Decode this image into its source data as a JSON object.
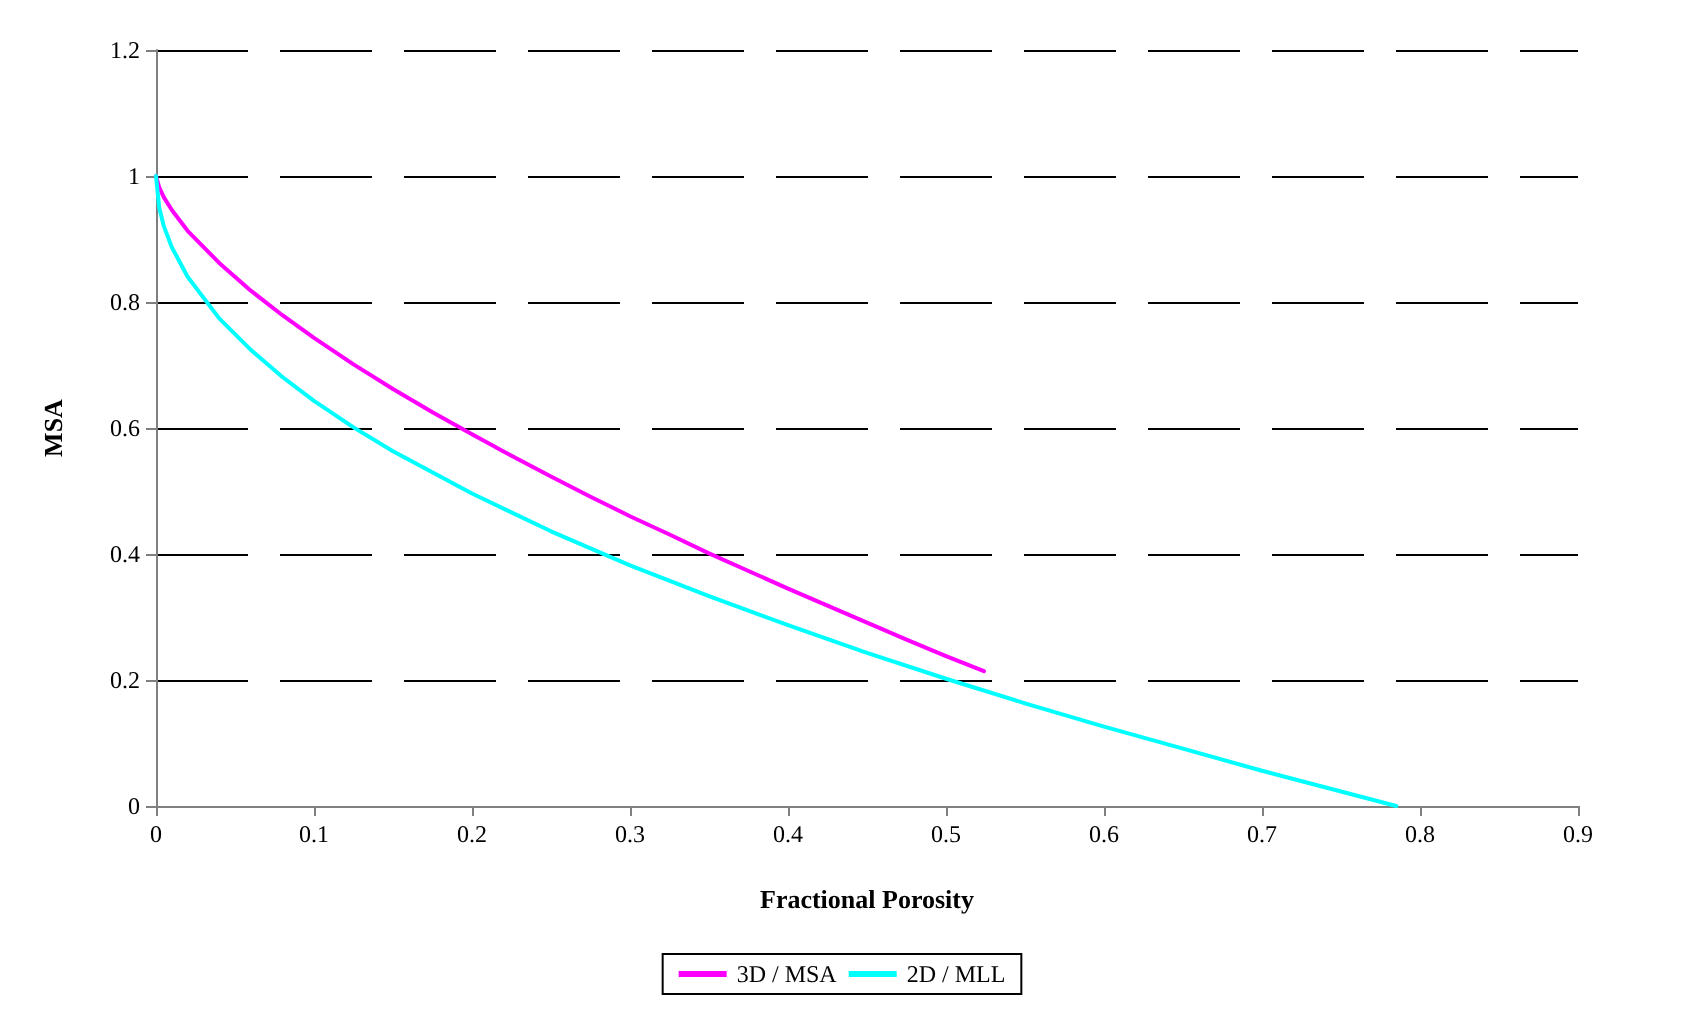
{
  "chart_data": {
    "type": "line",
    "xlabel": "Fractional Porosity",
    "ylabel": "MSA",
    "xlim": [
      0,
      0.9
    ],
    "xticks": [
      0,
      0.1,
      0.2,
      0.3,
      0.4,
      0.5,
      0.6,
      0.7,
      0.8,
      0.9
    ],
    "ylim": [
      0,
      1.2
    ],
    "yticks": [
      0,
      0.2,
      0.4,
      0.6,
      0.8,
      1,
      1.2
    ],
    "grid": "y",
    "legend": "bottom",
    "marker": "none",
    "line_style": "solid",
    "series": [
      {
        "name": "3D / MSA",
        "color": "#ff00ff",
        "x": [
          0,
          0.002,
          0.005,
          0.01,
          0.02,
          0.04,
          0.06,
          0.08,
          0.1,
          0.125,
          0.15,
          0.175,
          0.2,
          0.225,
          0.25,
          0.275,
          0.3,
          0.325,
          0.35,
          0.375,
          0.4,
          0.425,
          0.45,
          0.475,
          0.5,
          0.524
        ],
        "values": [
          1,
          0.982,
          0.966,
          0.946,
          0.913,
          0.862,
          0.818,
          0.779,
          0.743,
          0.701,
          0.662,
          0.625,
          0.59,
          0.556,
          0.523,
          0.491,
          0.46,
          0.431,
          0.401,
          0.373,
          0.345,
          0.318,
          0.291,
          0.264,
          0.238,
          0.214
        ]
      },
      {
        "name": "2D / MLL",
        "color": "#00ffff",
        "x": [
          0,
          0.002,
          0.005,
          0.01,
          0.02,
          0.04,
          0.06,
          0.08,
          0.1,
          0.125,
          0.15,
          0.2,
          0.25,
          0.3,
          0.35,
          0.4,
          0.45,
          0.5,
          0.55,
          0.6,
          0.65,
          0.7,
          0.75,
          0.785
        ],
        "values": [
          1,
          0.95,
          0.92,
          0.887,
          0.84,
          0.774,
          0.724,
          0.681,
          0.643,
          0.601,
          0.563,
          0.496,
          0.436,
          0.382,
          0.333,
          0.287,
          0.243,
          0.202,
          0.163,
          0.126,
          0.091,
          0.056,
          0.023,
          0
        ]
      }
    ]
  }
}
